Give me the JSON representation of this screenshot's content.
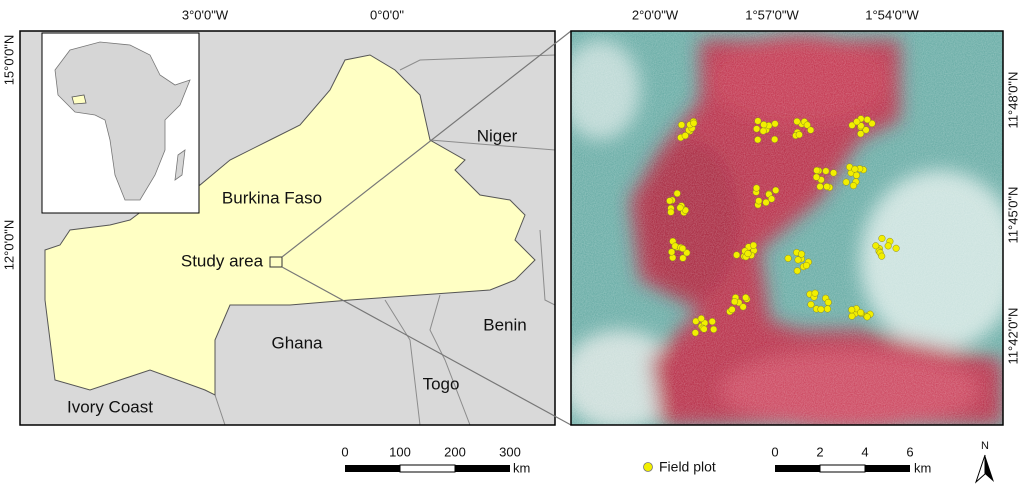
{
  "map": {
    "overview": {
      "top_labels": [
        "3°0'0\"W",
        "0°0'0\""
      ],
      "left_labels": [
        "15°0'0\"N",
        "12°0'0\"N"
      ],
      "countries": {
        "burkina_faso": "Burkina Faso",
        "niger": "Niger",
        "ghana": "Ghana",
        "benin": "Benin",
        "togo": "Togo",
        "ivory_coast": "Ivory Coast"
      },
      "study_area": "Study area",
      "scale": {
        "ticks": [
          "0",
          "100",
          "200",
          "300"
        ],
        "unit": "km"
      }
    },
    "image": {
      "top_labels": [
        "2°0'0\"W",
        "1°57'0\"W",
        "1°54'0\"W"
      ],
      "right_labels": [
        "11°48'0\"N",
        "11°45'0\"N",
        "11°42'0\"N"
      ],
      "legend": "Field plot",
      "scale": {
        "ticks": [
          "0",
          "2",
          "4",
          "6"
        ],
        "unit": "km"
      },
      "north": "N"
    }
  }
}
